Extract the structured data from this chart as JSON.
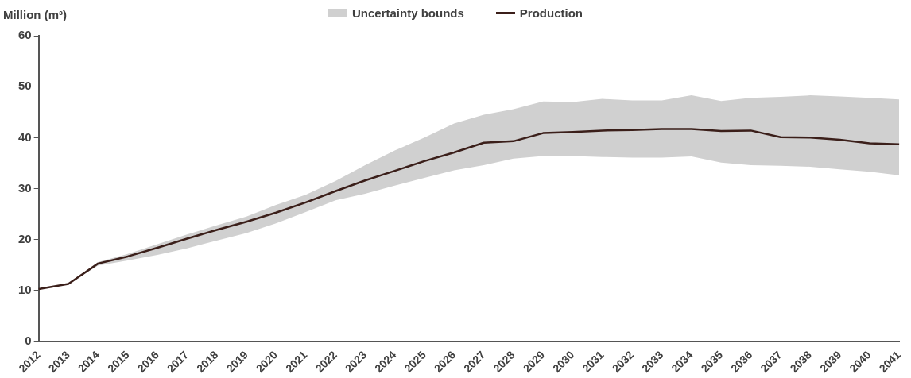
{
  "chart_data": {
    "type": "line",
    "ylabel": "Million (m³)",
    "categories": [
      "2012",
      "2013",
      "2014",
      "2015",
      "2016",
      "2017",
      "2018",
      "2019",
      "2020",
      "2021",
      "2022",
      "2023",
      "2024",
      "2025",
      "2026",
      "2027",
      "2028",
      "2029",
      "2030",
      "2031",
      "2032",
      "2033",
      "2034",
      "2035",
      "2036",
      "2037",
      "2038",
      "2039",
      "2040",
      "2041"
    ],
    "series": [
      {
        "name": "Production",
        "color": "#3b1f1a",
        "values": [
          10.3,
          11.3,
          15.3,
          16.7,
          18.4,
          20.2,
          21.9,
          23.5,
          25.3,
          27.3,
          29.5,
          31.6,
          33.5,
          35.4,
          37.1,
          39.0,
          39.3,
          40.9,
          41.1,
          41.4,
          41.5,
          41.7,
          41.7,
          41.3,
          41.4,
          40.1,
          40.0,
          39.6,
          38.9,
          38.7
        ],
        "upper": [
          10.3,
          11.3,
          15.6,
          17.2,
          19.1,
          21.0,
          22.8,
          24.5,
          26.8,
          28.8,
          31.5,
          34.6,
          37.5,
          40.0,
          42.8,
          44.5,
          45.6,
          47.1,
          47.0,
          47.6,
          47.3,
          47.3,
          48.3,
          47.2,
          47.8,
          48.0,
          48.3,
          48.1,
          47.8,
          47.5
        ],
        "lower": [
          10.3,
          11.3,
          14.9,
          15.9,
          17.0,
          18.3,
          19.8,
          21.3,
          23.2,
          25.4,
          27.7,
          29.0,
          30.6,
          32.1,
          33.6,
          34.6,
          35.9,
          36.4,
          36.4,
          36.2,
          36.1,
          36.1,
          36.3,
          35.1,
          34.6,
          34.5,
          34.3,
          33.8,
          33.3,
          32.6
        ]
      }
    ],
    "annotations": [
      "Uncertainty bounds"
    ],
    "ylim": [
      0,
      60
    ],
    "yticks": [
      0,
      10,
      20,
      30,
      40,
      50,
      60
    ],
    "grid": false,
    "legend": "top",
    "marker": "none",
    "line_style": "solid"
  }
}
